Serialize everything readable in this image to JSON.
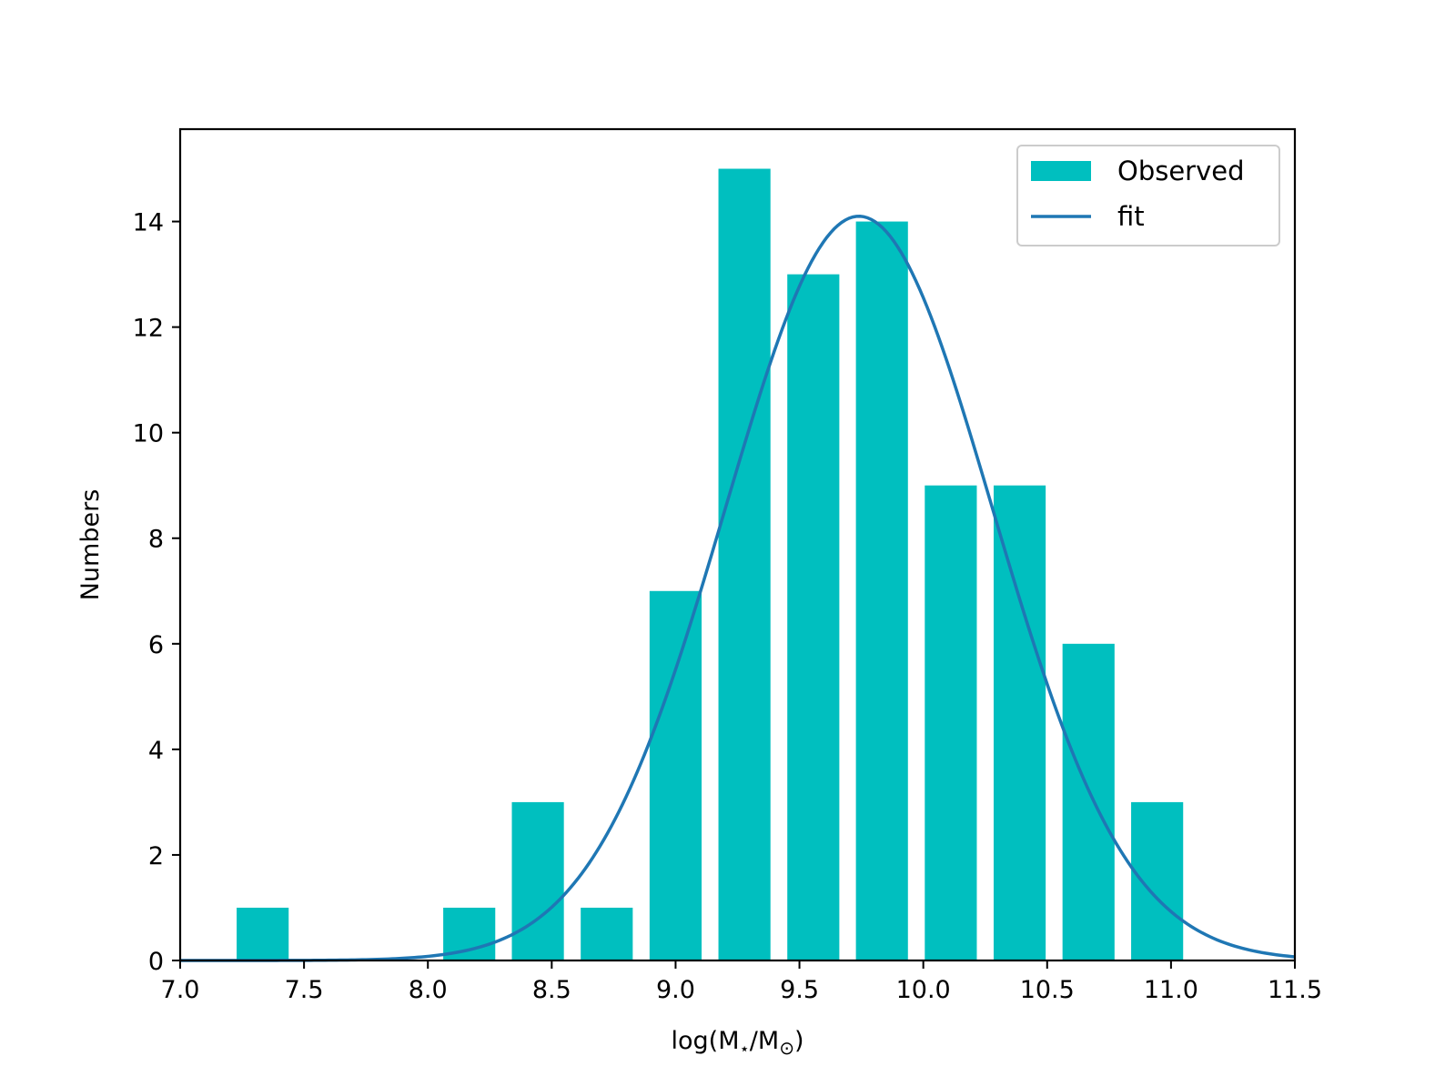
{
  "chart_data": {
    "type": "bar",
    "series": [
      {
        "name": "Observed",
        "kind": "bar",
        "color": "#00bfbf",
        "x": [
          7.333,
          8.167,
          8.444,
          8.722,
          9.0,
          9.278,
          9.556,
          9.833,
          10.111,
          10.389,
          10.667,
          10.944
        ],
        "values": [
          1,
          1,
          3,
          1,
          7,
          15,
          13,
          14,
          9,
          9,
          6,
          3
        ],
        "bar_width": 0.21
      },
      {
        "name": "fit",
        "kind": "line",
        "color": "#1f77b4",
        "function": "gaussian",
        "amplitude": 14.1,
        "mean": 9.74,
        "sigma": 0.54
      }
    ],
    "xlabel": "log(M",
    "xlabel_sub1": "⋆",
    "xlabel_mid": "/M",
    "xlabel_sub2": "⊙",
    "xlabel_end": ")",
    "ylabel": "Numbers",
    "xlim": [
      7.0,
      11.5
    ],
    "ylim": [
      0,
      15.75
    ],
    "xticks": [
      "7.0",
      "7.5",
      "8.0",
      "8.5",
      "9.0",
      "9.5",
      "10.0",
      "10.5",
      "11.0",
      "11.5"
    ],
    "yticks": [
      "0",
      "2",
      "4",
      "6",
      "8",
      "10",
      "12",
      "14"
    ],
    "legend": {
      "position": "top-right",
      "entries": [
        "Observed",
        "fit"
      ]
    },
    "grid": false
  }
}
